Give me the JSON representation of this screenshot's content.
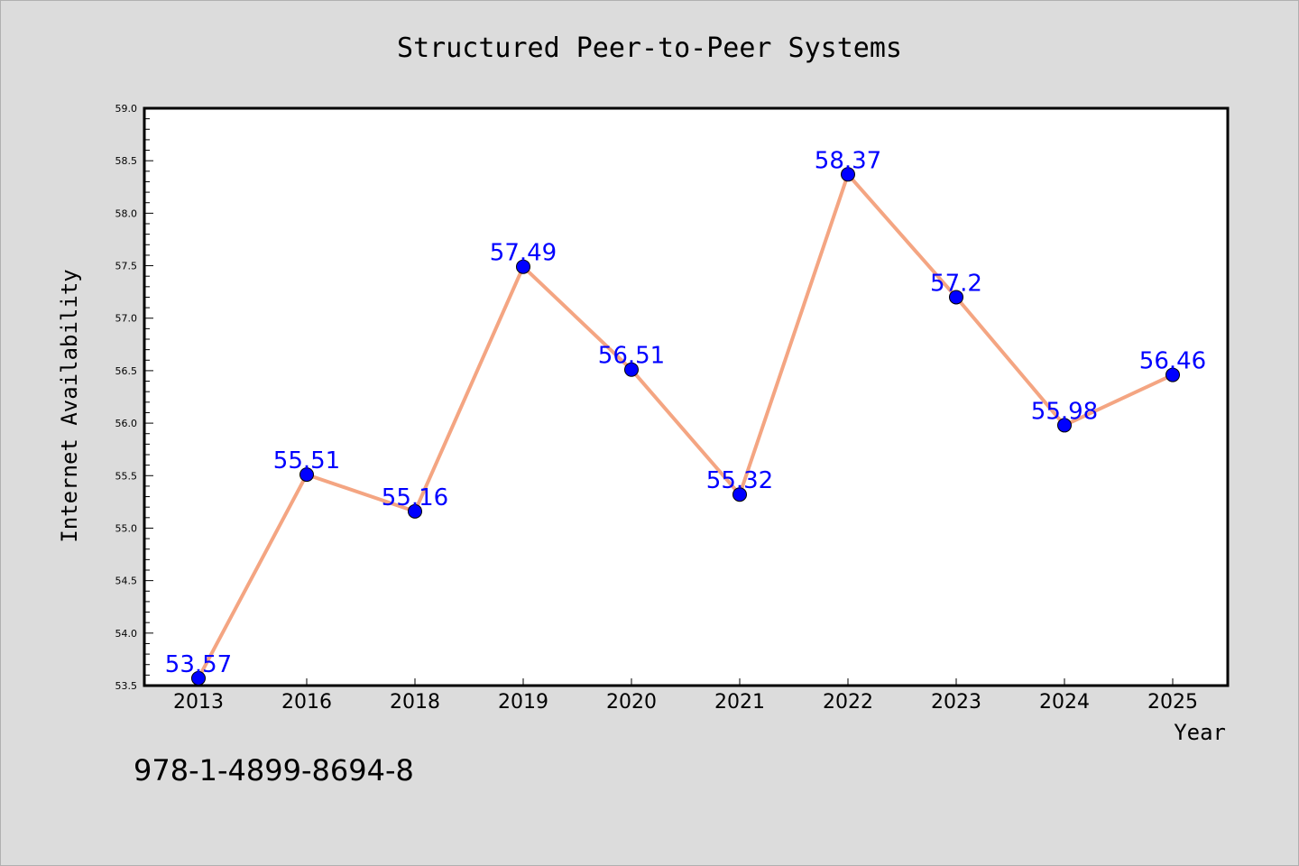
{
  "chart_data": {
    "type": "line",
    "title": "Structured Peer-to-Peer Systems",
    "xlabel": "Year",
    "ylabel": "Internet Availability",
    "categories": [
      "2013",
      "2016",
      "2018",
      "2019",
      "2020",
      "2021",
      "2022",
      "2023",
      "2024",
      "2025"
    ],
    "values": [
      53.57,
      55.51,
      55.16,
      57.49,
      56.51,
      55.32,
      58.37,
      57.2,
      55.98,
      56.46
    ],
    "data_labels": [
      "53.57",
      "55.51",
      "55.16",
      "57.49",
      "56.51",
      "55.32",
      "58.37",
      "57.2",
      "55.98",
      "56.46"
    ],
    "ylim": [
      53.5,
      59.0
    ],
    "yticks": [
      "53.5",
      "54.0",
      "54.5",
      "55.0",
      "55.5",
      "56.0",
      "56.5",
      "57.0",
      "57.5",
      "58.0",
      "58.5",
      "59.0"
    ],
    "grid": false,
    "line_color": "#f4a582",
    "marker_color": "#0000ff",
    "label_color": "#0000ff",
    "background": "#dcdcdc",
    "plot_background": "#ffffff"
  },
  "annotation": "978-1-4899-8694-8"
}
